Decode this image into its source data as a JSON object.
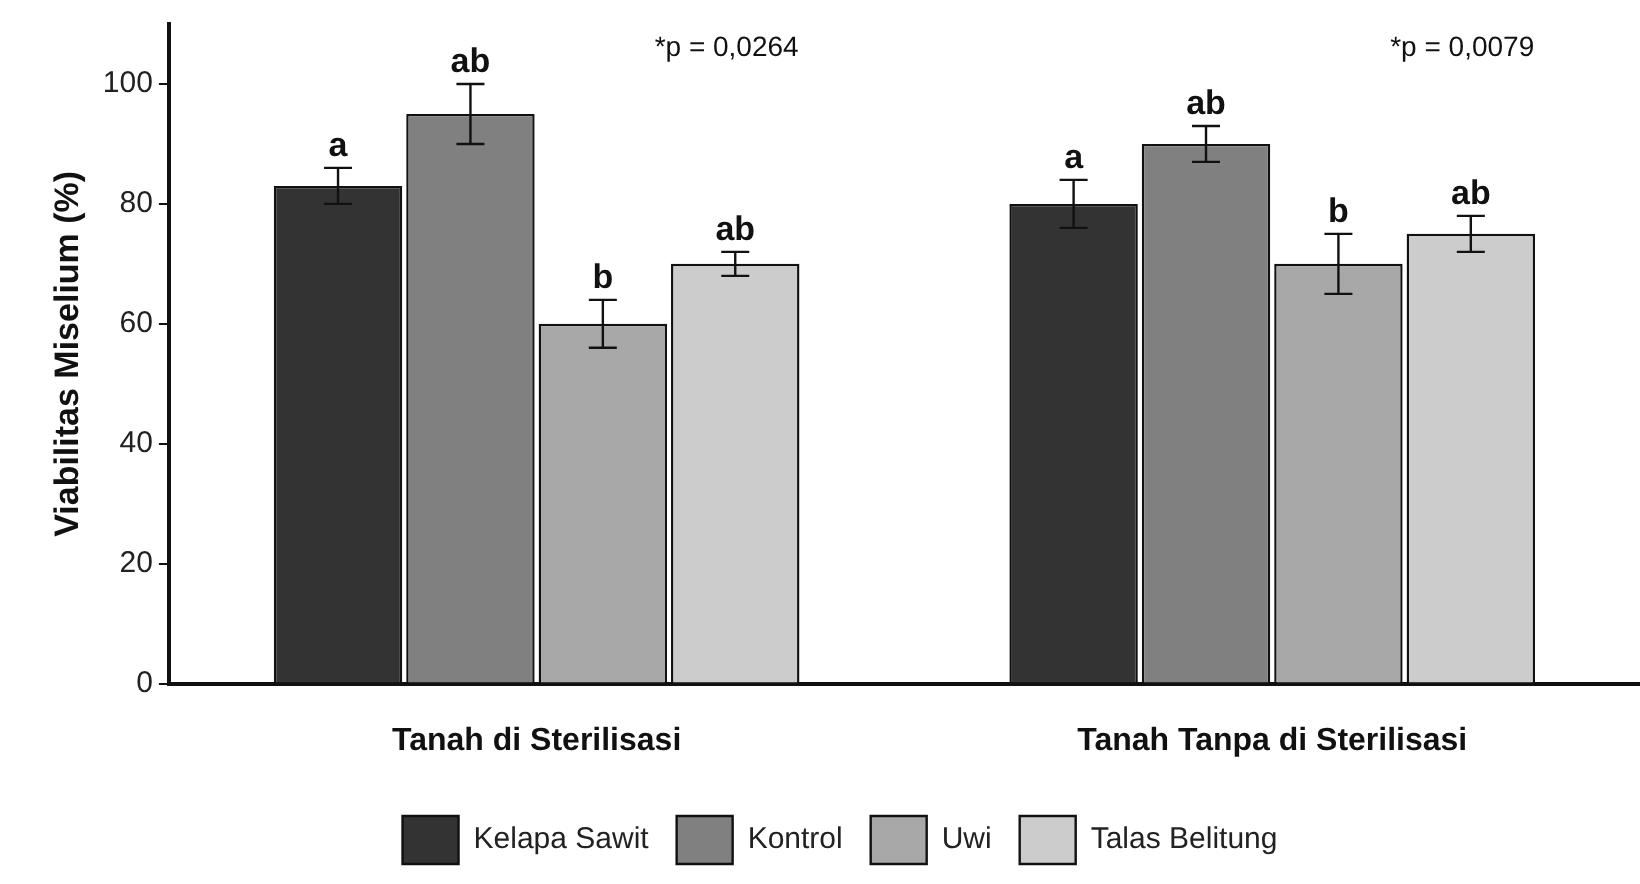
{
  "chart_data": {
    "type": "bar",
    "ylabel": "Viabilitas Miselium (%)",
    "categories": [
      "Tanah di Sterilisasi",
      "Tanah Tanpa di Sterilisasi"
    ],
    "series": [
      {
        "name": "Kelapa Sawit",
        "color": "#333333",
        "values": [
          83,
          80
        ],
        "errors": [
          3,
          4
        ],
        "value_labels": [
          "a",
          "a"
        ]
      },
      {
        "name": "Kontrol",
        "color": "#808080",
        "values": [
          95,
          90
        ],
        "errors": [
          5,
          3
        ],
        "value_labels": [
          "ab",
          "ab"
        ]
      },
      {
        "name": "Uwi",
        "color": "#a8a8a8",
        "values": [
          60,
          70
        ],
        "errors": [
          4,
          5
        ],
        "value_labels": [
          "b",
          "b"
        ]
      },
      {
        "name": "Talas Belitung",
        "color": "#cccccc",
        "values": [
          70,
          75
        ],
        "errors": [
          2,
          3
        ],
        "value_labels": [
          "ab",
          "ab"
        ]
      }
    ],
    "annotations": [
      "*p = 0,0264",
      "*p = 0,0079"
    ],
    "ylim": [
      0,
      110
    ],
    "yticks": [
      0,
      20,
      40,
      60,
      80,
      100
    ],
    "grid": false,
    "legend": "bottom"
  }
}
